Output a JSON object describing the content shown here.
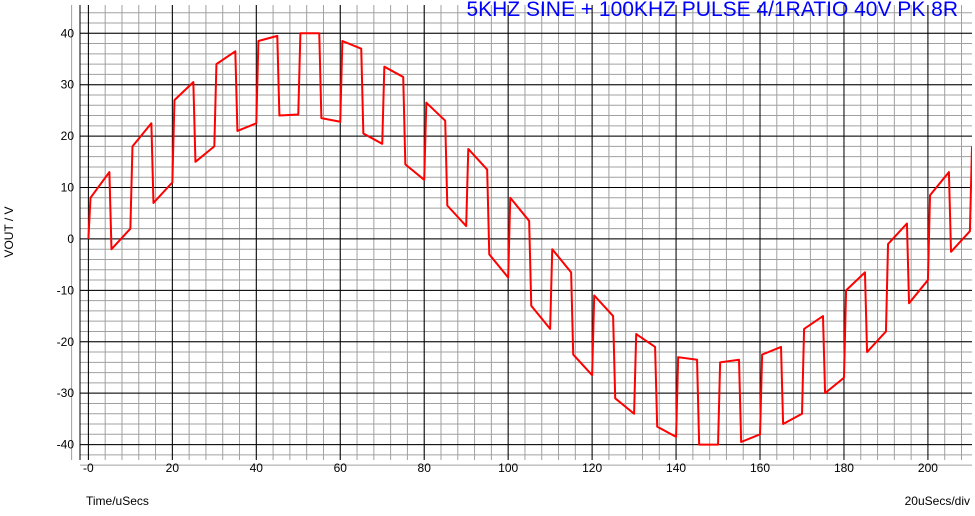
{
  "chart_data": {
    "type": "line",
    "title": "5KHZ SINE + 100KHZ PULSE 4/1RATIO 40V PK 8R",
    "title_color": "#0000ff",
    "x_label": "Time/uSecs",
    "x_scale_label": "20uSecs/div",
    "y_label": "VOUT / V",
    "xlim": [
      -2,
      210.5
    ],
    "ylim": [
      -43,
      45.5
    ],
    "xticks": [
      {
        "value": 0,
        "label": "-0"
      },
      20,
      40,
      60,
      80,
      100,
      120,
      140,
      160,
      180,
      200
    ],
    "yticks": [
      -40,
      -30,
      -20,
      -10,
      0,
      10,
      20,
      30,
      40
    ],
    "grid": true,
    "minor_grid": true,
    "x": [
      0,
      0.5,
      5,
      5.5,
      10,
      10.5,
      15,
      15.5,
      20,
      20.5,
      25,
      25.5,
      30,
      30.5,
      35,
      35.5,
      40,
      40.5,
      45,
      45.5,
      50,
      50.5,
      55,
      55.5,
      60,
      60.5,
      65,
      65.5,
      70,
      70.5,
      75,
      75.5,
      80,
      80.5,
      85,
      85.5,
      90,
      90.5,
      95,
      95.5,
      100,
      100.5,
      105,
      105.5,
      110,
      110.5,
      115,
      115.5,
      120,
      120.5,
      125,
      125.5,
      130,
      130.5,
      135,
      135.5,
      140,
      140.5,
      145,
      145.5,
      150,
      150.5,
      155,
      155.5,
      160,
      160.5,
      165,
      165.5,
      170,
      170.5,
      175,
      175.5,
      180,
      180.5,
      185,
      185.5,
      190,
      190.5,
      195,
      195.5,
      200,
      200.5,
      205,
      205.5,
      210,
      210.5
    ],
    "series": [
      {
        "name": "VOUT",
        "color": "#ff0000",
        "values": [
          0,
          8,
          13,
          -2,
          2,
          18,
          22.5,
          7,
          11,
          27,
          30.5,
          15,
          18,
          34,
          36.5,
          21,
          22.5,
          38.5,
          39.5,
          24,
          24.2,
          40,
          40,
          23.5,
          22.8,
          38.5,
          37,
          20.5,
          18.5,
          33.5,
          31.5,
          14.5,
          11.5,
          26.5,
          23,
          6.5,
          2.5,
          17.5,
          13.5,
          -3,
          -7.5,
          8,
          3.5,
          -13,
          -17.5,
          -2,
          -6.5,
          -22.5,
          -26.5,
          -11,
          -15,
          -31,
          -34,
          -18.5,
          -21,
          -36.5,
          -38.5,
          -23,
          -23.5,
          -40,
          -40,
          -24,
          -23.5,
          -39.5,
          -38,
          -22.5,
          -21,
          -36,
          -34,
          -17.5,
          -15,
          -30,
          -27,
          -10,
          -6.5,
          -22,
          -18,
          -1,
          3,
          -12.5,
          -8,
          8.5,
          13,
          -2.5,
          1.5,
          18
        ]
      }
    ]
  }
}
